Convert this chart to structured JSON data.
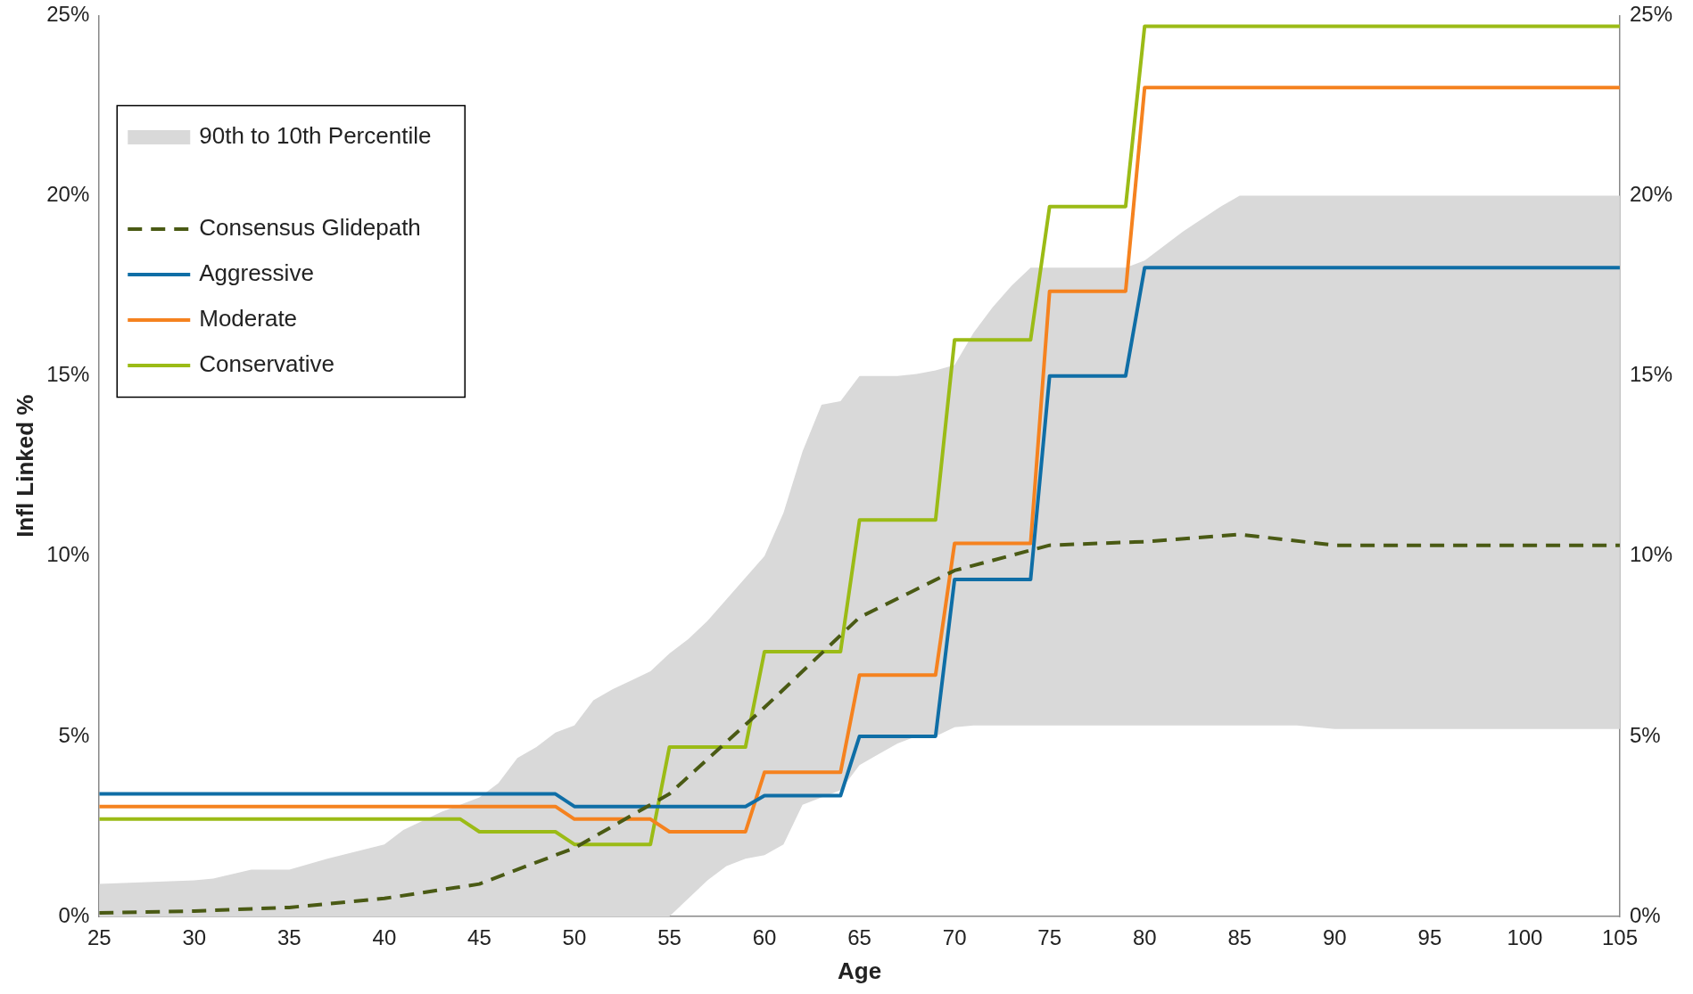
{
  "chart_data": {
    "type": "line",
    "xlabel": "Age",
    "ylabel": "Infl Linked %",
    "xlim": [
      25,
      105
    ],
    "xticks": [
      25,
      30,
      35,
      40,
      45,
      50,
      55,
      60,
      65,
      70,
      75,
      80,
      85,
      90,
      95,
      100,
      105
    ],
    "ylim": [
      0,
      25
    ],
    "yticks": [
      {
        "value": 0,
        "label": "0%"
      },
      {
        "value": 5,
        "label": "5%"
      },
      {
        "value": 10,
        "label": "10%"
      },
      {
        "value": 15,
        "label": "15%"
      },
      {
        "value": 20,
        "label": "20%"
      },
      {
        "value": 25,
        "label": "25%"
      }
    ],
    "y2lim": [
      0,
      25
    ],
    "y2ticks": [
      {
        "value": 0,
        "label": "0%"
      },
      {
        "value": 5,
        "label": "5%"
      },
      {
        "value": 10,
        "label": "10%"
      },
      {
        "value": 15,
        "label": "15%"
      },
      {
        "value": 20,
        "label": "20%"
      },
      {
        "value": 25,
        "label": "25%"
      }
    ],
    "grid": false,
    "legend": "top left",
    "marker": "none",
    "series": [
      {
        "name": "90th to 10th Percentile",
        "type": "area",
        "color": "#d9d9d9",
        "x": [
          25,
          30,
          31,
          33,
          35,
          37,
          40,
          41,
          43,
          45,
          46,
          47,
          48,
          49,
          50,
          51,
          52,
          54,
          55,
          56,
          57,
          58,
          59,
          60,
          61,
          62,
          63,
          64,
          65,
          66,
          67,
          68,
          69,
          70,
          71,
          72,
          73,
          74,
          75,
          79,
          80,
          82,
          84,
          85,
          88,
          90,
          105
        ],
        "values": [
          null,
          null,
          null,
          null,
          null,
          null,
          null,
          null,
          null,
          null,
          null,
          null,
          null,
          null,
          null,
          null,
          null,
          null,
          null,
          null,
          null,
          null,
          null,
          null,
          null,
          null,
          null,
          null,
          null,
          null,
          null,
          null,
          null,
          null,
          null,
          null,
          null,
          null,
          null,
          null,
          null,
          null,
          null,
          null,
          null,
          null,
          null
        ],
        "upper": [
          0.9,
          1.0,
          1.05,
          1.3,
          1.3,
          1.6,
          2.0,
          2.4,
          2.9,
          3.3,
          3.7,
          4.4,
          4.7,
          5.1,
          5.3,
          6.0,
          6.3,
          6.8,
          7.3,
          7.7,
          8.2,
          8.8,
          9.4,
          10.0,
          11.2,
          12.9,
          14.2,
          14.3,
          15.0,
          15.0,
          15.0,
          15.05,
          15.15,
          15.3,
          16.2,
          16.9,
          17.5,
          18.0,
          18.0,
          18.0,
          18.2,
          19.0,
          19.7,
          20.0,
          20.0,
          20.0,
          20.0
        ],
        "lower": [
          0,
          0,
          0,
          0,
          0,
          0,
          0,
          0,
          0,
          0,
          0,
          0,
          0,
          0,
          0,
          0,
          0,
          0,
          0,
          0.5,
          1.0,
          1.4,
          1.6,
          1.7,
          2.0,
          3.1,
          3.3,
          3.5,
          4.2,
          4.5,
          4.8,
          5.0,
          5.0,
          5.25,
          5.3,
          5.3,
          5.3,
          5.3,
          5.3,
          5.3,
          5.3,
          5.3,
          5.3,
          5.3,
          5.3,
          5.2,
          5.2
        ]
      },
      {
        "name": "Consensus Glidepath",
        "color": "#4a5a14",
        "line_style": "dashed",
        "x": [
          25,
          30,
          35,
          40,
          45,
          50,
          55,
          60,
          65,
          70,
          75,
          80,
          85,
          90,
          105
        ],
        "values": [
          0.1,
          0.15,
          0.25,
          0.5,
          0.9,
          1.9,
          3.4,
          5.8,
          8.3,
          9.6,
          10.3,
          10.4,
          10.6,
          10.3,
          10.3
        ]
      },
      {
        "name": "Aggressive",
        "color": "#0f6ea6",
        "line_style": "solid",
        "x": [
          25,
          49,
          50,
          59,
          60,
          64,
          65,
          69,
          70,
          74,
          75,
          79,
          80,
          105
        ],
        "values": [
          3.4,
          3.4,
          3.05,
          3.05,
          3.35,
          3.35,
          5.0,
          5.0,
          9.35,
          9.35,
          15.0,
          15.0,
          18.0,
          18.0
        ]
      },
      {
        "name": "Moderate",
        "color": "#f5821f",
        "line_style": "solid",
        "x": [
          25,
          49,
          50,
          54,
          55,
          59,
          60,
          64,
          65,
          69,
          70,
          74,
          75,
          79,
          80,
          105
        ],
        "values": [
          3.05,
          3.05,
          2.7,
          2.7,
          2.35,
          2.35,
          4.0,
          4.0,
          6.7,
          6.7,
          10.35,
          10.35,
          17.35,
          17.35,
          23.0,
          23.0
        ]
      },
      {
        "name": "Conservative",
        "color": "#9bbb16",
        "line_style": "solid",
        "x": [
          25,
          44,
          45,
          49,
          50,
          54,
          55,
          59,
          60,
          64,
          65,
          69,
          70,
          74,
          75,
          79,
          80,
          105
        ],
        "values": [
          2.7,
          2.7,
          2.35,
          2.35,
          2.0,
          2.0,
          4.7,
          4.7,
          7.35,
          7.35,
          11.0,
          11.0,
          16.0,
          16.0,
          19.7,
          19.7,
          24.7,
          24.7
        ]
      }
    ]
  }
}
